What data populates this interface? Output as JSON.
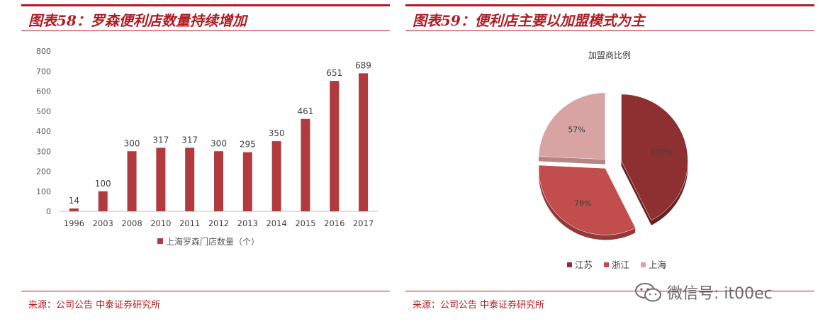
{
  "left_figure": {
    "title": "图表58：罗森便利店数量持续增加",
    "source": "来源：公司公告 中泰证券研究所"
  },
  "right_figure": {
    "title": "图表59：便利店主要以加盟模式为主",
    "source": "来源：公司公告 中泰证券研究所"
  },
  "watermark": {
    "text": "微信号: it00ec"
  },
  "colors": {
    "accent": "#b01c22",
    "bar": "#b03a3e",
    "slice_jiangsu": "#8e3032",
    "slice_zhejiang": "#c24d4d",
    "slice_shanghai": "#d8a3a3"
  },
  "chart_data": [
    {
      "type": "bar",
      "title": "",
      "categories": [
        "1996",
        "2003",
        "2008",
        "2010",
        "2011",
        "2012",
        "2013",
        "2014",
        "2015",
        "2016",
        "2017"
      ],
      "series": [
        {
          "name": "上海罗森门店数量（个）",
          "values": [
            14,
            100,
            300,
            317,
            317,
            300,
            295,
            350,
            461,
            651,
            689
          ]
        }
      ],
      "yticks": [
        "0",
        "100",
        "200",
        "300",
        "400",
        "500",
        "600",
        "700",
        "800"
      ],
      "ylim": [
        0,
        800
      ],
      "xlabel": "",
      "ylabel": "",
      "legend": "bottom"
    },
    {
      "type": "pie",
      "title": "加盟商比例",
      "categories": [
        "江苏",
        "浙江",
        "上海"
      ],
      "labels": [
        "100%",
        "78%",
        "57%"
      ],
      "values": [
        100,
        78,
        57
      ],
      "legend": "bottom"
    }
  ]
}
